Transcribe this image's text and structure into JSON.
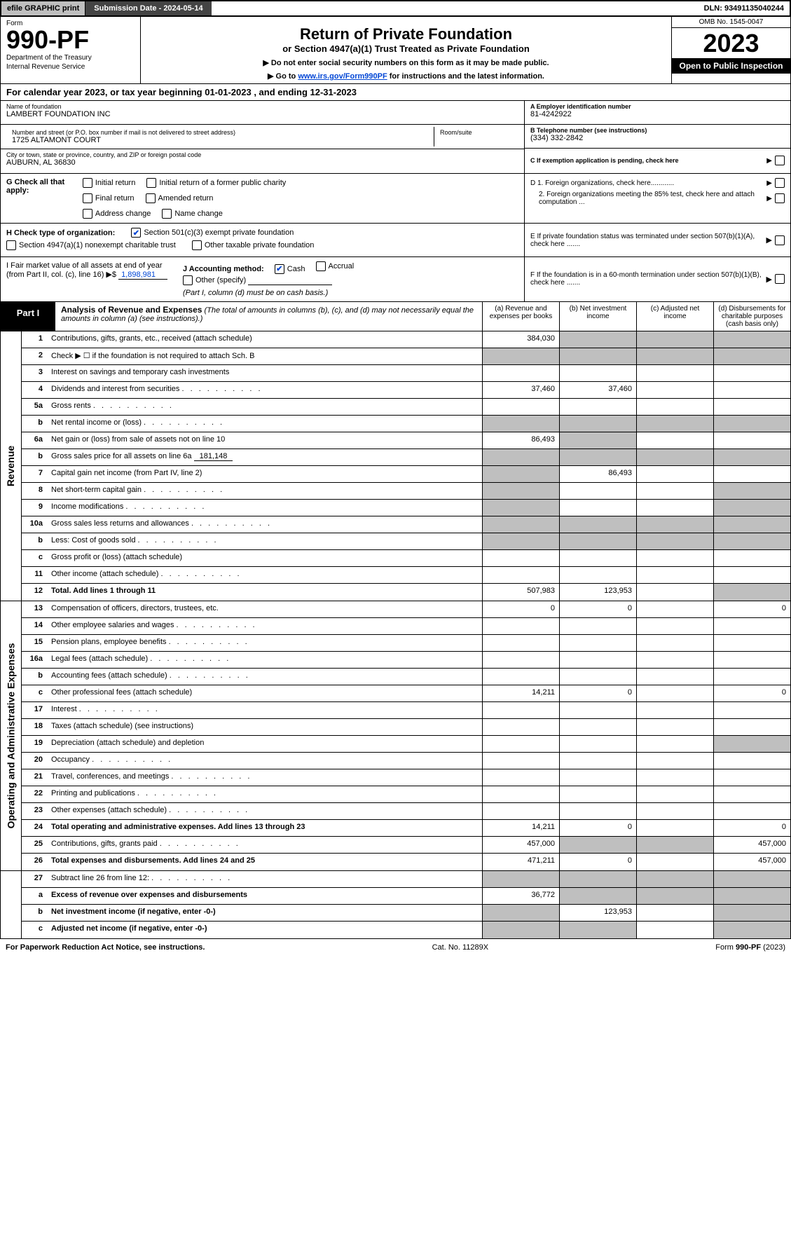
{
  "topbar": {
    "efile": "efile GRAPHIC print",
    "submission": "Submission Date - 2024-05-14",
    "dln": "DLN: 93491135040244"
  },
  "header": {
    "form_label": "Form",
    "form_number": "990-PF",
    "dept1": "Department of the Treasury",
    "dept2": "Internal Revenue Service",
    "title": "Return of Private Foundation",
    "subtitle": "or Section 4947(a)(1) Trust Treated as Private Foundation",
    "note1": "▶ Do not enter social security numbers on this form as it may be made public.",
    "note2_pre": "▶ Go to ",
    "note2_link": "www.irs.gov/Form990PF",
    "note2_post": " for instructions and the latest information.",
    "omb": "OMB No. 1545-0047",
    "year": "2023",
    "open": "Open to Public Inspection"
  },
  "cal_year": "For calendar year 2023, or tax year beginning 01-01-2023                    , and ending 12-31-2023",
  "info": {
    "name_lbl": "Name of foundation",
    "name": "LAMBERT FOUNDATION INC",
    "addr_lbl": "Number and street (or P.O. box number if mail is not delivered to street address)",
    "addr": "1725 ALTAMONT COURT",
    "room_lbl": "Room/suite",
    "city_lbl": "City or town, state or province, country, and ZIP or foreign postal code",
    "city": "AUBURN, AL  36830",
    "a_lbl": "A Employer identification number",
    "a_val": "81-4242922",
    "b_lbl": "B Telephone number (see instructions)",
    "b_val": "(334) 332-2842",
    "c_lbl": "C If exemption application is pending, check here"
  },
  "g": {
    "label": "G Check all that apply:",
    "opts": [
      "Initial return",
      "Initial return of a former public charity",
      "Final return",
      "Amended return",
      "Address change",
      "Name change"
    ]
  },
  "d": {
    "d1": "D 1. Foreign organizations, check here............",
    "d2": "2. Foreign organizations meeting the 85% test, check here and attach computation ..."
  },
  "h": {
    "label": "H Check type of organization:",
    "opt1": "Section 501(c)(3) exempt private foundation",
    "opt2": "Section 4947(a)(1) nonexempt charitable trust",
    "opt3": "Other taxable private foundation"
  },
  "e": {
    "text": "E  If private foundation status was terminated under section 507(b)(1)(A), check here ......."
  },
  "i": {
    "label": "I Fair market value of all assets at end of year (from Part II, col. (c), line 16) ▶$ ",
    "val": "1,898,981",
    "j_label": "J Accounting method:",
    "j_cash": "Cash",
    "j_accrual": "Accrual",
    "j_other": "Other (specify)",
    "j_note": "(Part I, column (d) must be on cash basis.)"
  },
  "f": {
    "text": "F  If the foundation is in a 60-month termination under section 507(b)(1)(B), check here ......."
  },
  "part1": {
    "label": "Part I",
    "title": "Analysis of Revenue and Expenses",
    "note": "(The total of amounts in columns (b), (c), and (d) may not necessarily equal the amounts in column (a) (see instructions).)",
    "col_a": "(a)   Revenue and expenses per books",
    "col_b": "(b)   Net investment income",
    "col_c": "(c)   Adjusted net income",
    "col_d": "(d)  Disbursements for charitable purposes (cash basis only)"
  },
  "revenue_label": "Revenue",
  "expenses_label": "Operating and Administrative Expenses",
  "rows": {
    "r1": {
      "n": "1",
      "d": "Contributions, gifts, grants, etc., received (attach schedule)",
      "a": "384,030"
    },
    "r2": {
      "n": "2",
      "d": "Check ▶ ☐ if the foundation is not required to attach Sch. B"
    },
    "r3": {
      "n": "3",
      "d": "Interest on savings and temporary cash investments"
    },
    "r4": {
      "n": "4",
      "d": "Dividends and interest from securities",
      "a": "37,460",
      "b": "37,460"
    },
    "r5a": {
      "n": "5a",
      "d": "Gross rents"
    },
    "r5b": {
      "n": "b",
      "d": "Net rental income or (loss)"
    },
    "r6a": {
      "n": "6a",
      "d": "Net gain or (loss) from sale of assets not on line 10",
      "a": "86,493"
    },
    "r6b": {
      "n": "b",
      "d": "Gross sales price for all assets on line 6a",
      "inline": "181,148"
    },
    "r7": {
      "n": "7",
      "d": "Capital gain net income (from Part IV, line 2)",
      "b": "86,493"
    },
    "r8": {
      "n": "8",
      "d": "Net short-term capital gain"
    },
    "r9": {
      "n": "9",
      "d": "Income modifications"
    },
    "r10a": {
      "n": "10a",
      "d": "Gross sales less returns and allowances"
    },
    "r10b": {
      "n": "b",
      "d": "Less: Cost of goods sold"
    },
    "r10c": {
      "n": "c",
      "d": "Gross profit or (loss) (attach schedule)"
    },
    "r11": {
      "n": "11",
      "d": "Other income (attach schedule)"
    },
    "r12": {
      "n": "12",
      "d": "Total. Add lines 1 through 11",
      "a": "507,983",
      "b": "123,953",
      "bold": true
    },
    "r13": {
      "n": "13",
      "d": "Compensation of officers, directors, trustees, etc.",
      "a": "0",
      "b": "0",
      "dd": "0"
    },
    "r14": {
      "n": "14",
      "d": "Other employee salaries and wages"
    },
    "r15": {
      "n": "15",
      "d": "Pension plans, employee benefits"
    },
    "r16a": {
      "n": "16a",
      "d": "Legal fees (attach schedule)"
    },
    "r16b": {
      "n": "b",
      "d": "Accounting fees (attach schedule)"
    },
    "r16c": {
      "n": "c",
      "d": "Other professional fees (attach schedule)",
      "a": "14,211",
      "b": "0",
      "dd": "0"
    },
    "r17": {
      "n": "17",
      "d": "Interest"
    },
    "r18": {
      "n": "18",
      "d": "Taxes (attach schedule) (see instructions)"
    },
    "r19": {
      "n": "19",
      "d": "Depreciation (attach schedule) and depletion"
    },
    "r20": {
      "n": "20",
      "d": "Occupancy"
    },
    "r21": {
      "n": "21",
      "d": "Travel, conferences, and meetings"
    },
    "r22": {
      "n": "22",
      "d": "Printing and publications"
    },
    "r23": {
      "n": "23",
      "d": "Other expenses (attach schedule)"
    },
    "r24": {
      "n": "24",
      "d": "Total operating and administrative expenses. Add lines 13 through 23",
      "a": "14,211",
      "b": "0",
      "dd": "0",
      "bold": true
    },
    "r25": {
      "n": "25",
      "d": "Contributions, gifts, grants paid",
      "a": "457,000",
      "dd": "457,000"
    },
    "r26": {
      "n": "26",
      "d": "Total expenses and disbursements. Add lines 24 and 25",
      "a": "471,211",
      "b": "0",
      "dd": "457,000",
      "bold": true
    },
    "r27": {
      "n": "27",
      "d": "Subtract line 26 from line 12:"
    },
    "r27a": {
      "n": "a",
      "d": "Excess of revenue over expenses and disbursements",
      "a": "36,772",
      "bold": true
    },
    "r27b": {
      "n": "b",
      "d": "Net investment income (if negative, enter -0-)",
      "b": "123,953",
      "bold": true
    },
    "r27c": {
      "n": "c",
      "d": "Adjusted net income (if negative, enter -0-)",
      "bold": true
    }
  },
  "footer": {
    "left": "For Paperwork Reduction Act Notice, see instructions.",
    "mid": "Cat. No. 11289X",
    "right": "Form 990-PF (2023)"
  },
  "colors": {
    "shaded": "#bfbfbf",
    "link": "#0046d5"
  }
}
